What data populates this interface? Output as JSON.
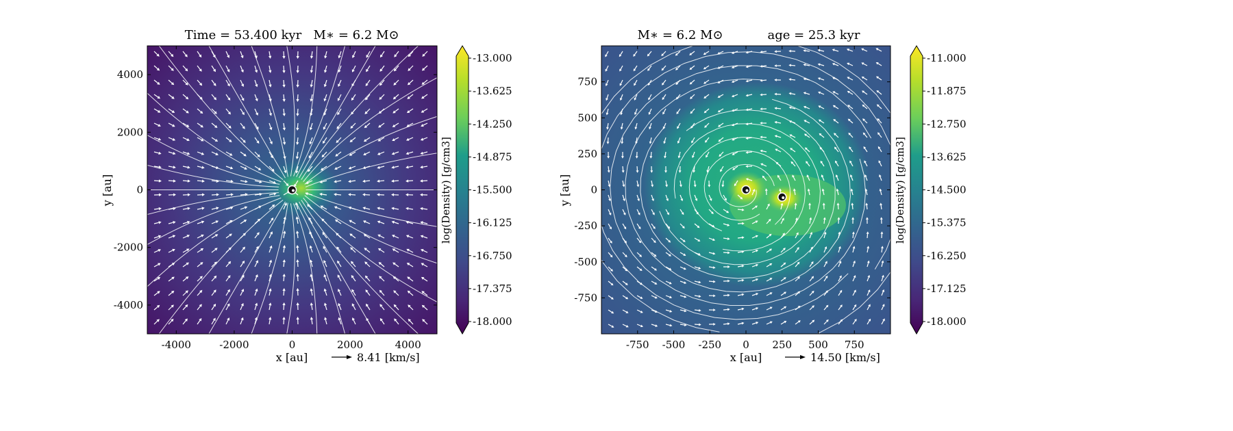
{
  "chart_data": [
    {
      "type": "heatmap",
      "title_left": "Time = 53.400 kyr",
      "title_right": "M∗ = 6.2 M⊙",
      "xlabel": "x [au]",
      "ylabel": "y [au]",
      "xlim": [
        -5000,
        5000
      ],
      "ylim": [
        -5000,
        5000
      ],
      "xticks": [
        -4000,
        -2000,
        0,
        2000,
        4000
      ],
      "yticks": [
        -4000,
        -2000,
        0,
        2000,
        4000
      ],
      "colorbar": {
        "label": "log(Density) [g/cm3]",
        "range": [
          -18.0,
          -13.0
        ],
        "ticks": [
          "-13.000",
          "-13.625",
          "-14.250",
          "-14.875",
          "-15.500",
          "-16.125",
          "-16.750",
          "-17.375",
          "-18.000"
        ],
        "colormap": "viridis"
      },
      "velocity_key": "8.41 [km/s]",
      "sinks": [
        [
          0,
          0
        ]
      ]
    },
    {
      "type": "heatmap",
      "title_left": "M∗ = 6.2 M⊙",
      "title_right": "age = 25.3 kyr",
      "xlabel": "x [au]",
      "ylabel": "y [au]",
      "xlim": [
        -1000,
        1000
      ],
      "ylim": [
        -1000,
        1000
      ],
      "xticks": [
        -750,
        -500,
        -250,
        0,
        250,
        500,
        750
      ],
      "yticks": [
        -750,
        -500,
        -250,
        0,
        250,
        500,
        750
      ],
      "colorbar": {
        "label": "log(Density) [g/cm3]",
        "range": [
          -18.0,
          -11.0
        ],
        "ticks": [
          "-11.000",
          "-11.875",
          "-12.750",
          "-13.625",
          "-14.500",
          "-15.375",
          "-16.250",
          "-17.125",
          "-18.000"
        ],
        "colormap": "viridis"
      },
      "velocity_key": "14.50 [km/s]",
      "sinks": [
        [
          0,
          0
        ],
        [
          250,
          -50
        ]
      ]
    }
  ]
}
